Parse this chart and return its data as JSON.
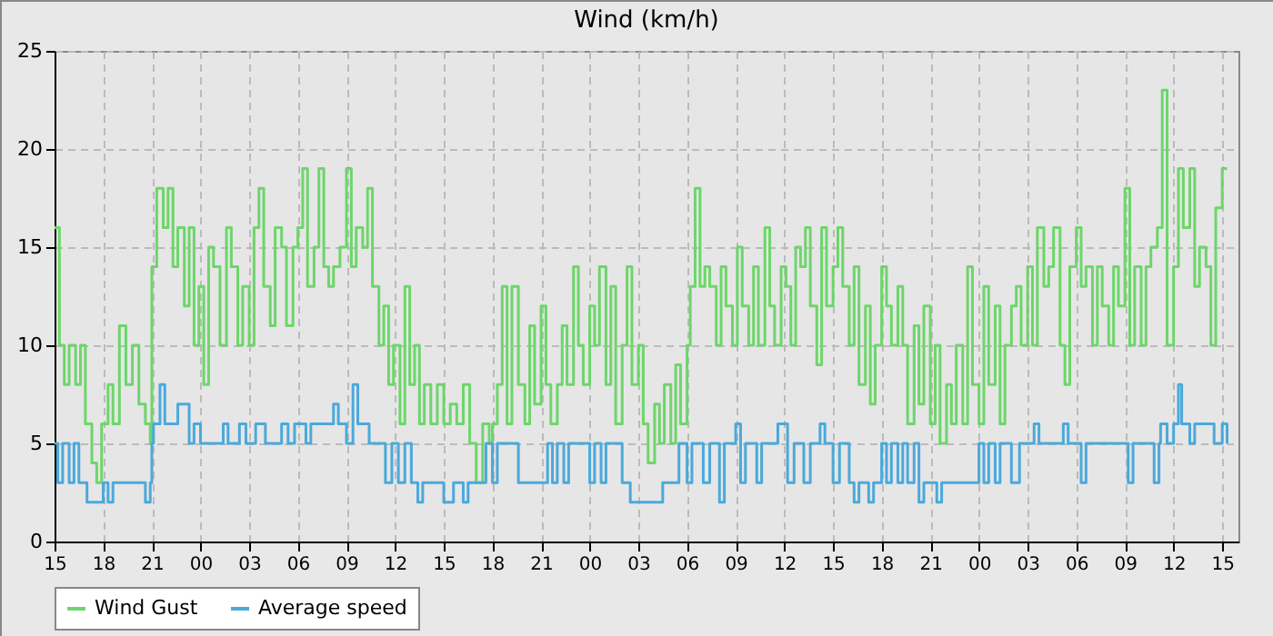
{
  "chart_data": {
    "type": "step",
    "title": "Wind (km/h)",
    "xlim": [
      15,
      88
    ],
    "ylim": [
      0,
      25
    ],
    "xticks": [
      {
        "value": 15,
        "label": "15"
      },
      {
        "value": 18,
        "label": "18"
      },
      {
        "value": 21,
        "label": "21"
      },
      {
        "value": 24,
        "label": "00"
      },
      {
        "value": 27,
        "label": "03"
      },
      {
        "value": 30,
        "label": "06"
      },
      {
        "value": 33,
        "label": "09"
      },
      {
        "value": 36,
        "label": "12"
      },
      {
        "value": 39,
        "label": "15"
      },
      {
        "value": 42,
        "label": "18"
      },
      {
        "value": 45,
        "label": "21"
      },
      {
        "value": 48,
        "label": "00"
      },
      {
        "value": 51,
        "label": "03"
      },
      {
        "value": 54,
        "label": "06"
      },
      {
        "value": 57,
        "label": "09"
      },
      {
        "value": 60,
        "label": "12"
      },
      {
        "value": 63,
        "label": "15"
      },
      {
        "value": 66,
        "label": "18"
      },
      {
        "value": 69,
        "label": "21"
      },
      {
        "value": 72,
        "label": "00"
      },
      {
        "value": 75,
        "label": "03"
      },
      {
        "value": 78,
        "label": "06"
      },
      {
        "value": 81,
        "label": "09"
      },
      {
        "value": 84,
        "label": "12"
      },
      {
        "value": 87,
        "label": "15"
      }
    ],
    "yticks": [
      0,
      5,
      10,
      15,
      20,
      25
    ],
    "grid": true,
    "legend": "bottom",
    "series": [
      {
        "name": "Wind Gust",
        "color": "#6dd66a",
        "x": [
          15,
          15.3,
          15.6,
          15.9,
          16.3,
          16.6,
          16.9,
          17.3,
          17.6,
          17.9,
          18.3,
          18.6,
          19,
          19.4,
          19.8,
          20.2,
          20.6,
          20.9,
          21,
          21.3,
          21.7,
          22,
          22.3,
          22.6,
          23,
          23.3,
          23.6,
          23.9,
          24.2,
          24.5,
          24.8,
          25.2,
          25.6,
          25.9,
          26.3,
          26.6,
          27,
          27.3,
          27.6,
          27.9,
          28.3,
          28.6,
          29,
          29.3,
          29.7,
          30,
          30.3,
          30.6,
          31,
          31.3,
          31.6,
          31.9,
          32.2,
          32.6,
          33,
          33.3,
          33.6,
          34,
          34.3,
          34.6,
          35,
          35.3,
          35.6,
          35.9,
          36.3,
          36.6,
          36.9,
          37.2,
          37.5,
          37.8,
          38.2,
          38.6,
          39,
          39.4,
          39.8,
          40.2,
          40.6,
          41,
          41.4,
          41.8,
          42,
          42.3,
          42.6,
          42.9,
          43.2,
          43.6,
          44,
          44.3,
          44.6,
          45,
          45.3,
          45.6,
          46,
          46.3,
          46.6,
          47,
          47.3,
          47.6,
          48,
          48.3,
          48.6,
          49,
          49.3,
          49.6,
          50,
          50.3,
          50.6,
          51,
          51.3,
          51.6,
          52,
          52.3,
          52.6,
          53,
          53.3,
          53.6,
          54,
          54.2,
          54.5,
          54.8,
          55.1,
          55.4,
          55.8,
          56.1,
          56.4,
          56.8,
          57.1,
          57.4,
          57.8,
          58.1,
          58.4,
          58.8,
          59.1,
          59.4,
          59.8,
          60.1,
          60.4,
          60.7,
          61,
          61.3,
          61.6,
          62,
          62.3,
          62.6,
          63,
          63.3,
          63.6,
          64,
          64.3,
          64.6,
          65,
          65.3,
          65.6,
          66,
          66.3,
          66.6,
          67,
          67.3,
          67.6,
          68,
          68.3,
          68.6,
          69,
          69.3,
          69.6,
          70,
          70.3,
          70.6,
          71,
          71.3,
          71.6,
          72,
          72.3,
          72.6,
          73,
          73.3,
          73.6,
          74,
          74.3,
          74.6,
          75,
          75.3,
          75.6,
          76,
          76.3,
          76.6,
          77,
          77.3,
          77.6,
          78,
          78.3,
          78.6,
          79,
          79.3,
          79.6,
          80,
          80.3,
          80.6,
          81,
          81.3,
          81.6,
          82,
          82.3,
          82.6,
          83,
          83.3,
          83.6,
          84,
          84.3,
          84.6,
          85,
          85.3,
          85.6,
          86,
          86.3,
          86.6,
          87,
          87.3
        ],
        "values": [
          16,
          10,
          8,
          10,
          8,
          10,
          6,
          4,
          3,
          6,
          8,
          6,
          11,
          8,
          10,
          7,
          6,
          5,
          14,
          18,
          16,
          18,
          14,
          16,
          12,
          16,
          10,
          13,
          8,
          15,
          14,
          10,
          16,
          14,
          10,
          13,
          10,
          16,
          18,
          13,
          11,
          16,
          15,
          11,
          15,
          16,
          19,
          13,
          15,
          19,
          14,
          13,
          14,
          15,
          19,
          14,
          16,
          15,
          18,
          13,
          10,
          12,
          8,
          10,
          6,
          13,
          8,
          10,
          6,
          8,
          6,
          8,
          6,
          7,
          6,
          8,
          5,
          3,
          6,
          5,
          6,
          8,
          13,
          6,
          13,
          8,
          6,
          11,
          7,
          12,
          8,
          6,
          8,
          11,
          8,
          14,
          10,
          8,
          12,
          10,
          14,
          8,
          13,
          6,
          10,
          14,
          8,
          10,
          6,
          4,
          7,
          5,
          8,
          5,
          9,
          6,
          10,
          13,
          18,
          13,
          14,
          13,
          10,
          14,
          12,
          10,
          15,
          12,
          10,
          14,
          10,
          16,
          12,
          10,
          14,
          13,
          10,
          15,
          14,
          16,
          12,
          9,
          16,
          12,
          14,
          16,
          13,
          10,
          14,
          8,
          12,
          7,
          10,
          14,
          12,
          10,
          13,
          10,
          6,
          11,
          7,
          12,
          6,
          10,
          5,
          8,
          6,
          10,
          6,
          14,
          8,
          6,
          13,
          8,
          12,
          6,
          10,
          12,
          13,
          10,
          14,
          10,
          16,
          13,
          14,
          16,
          10,
          8,
          14,
          16,
          13,
          14,
          10,
          14,
          12,
          10,
          14,
          12,
          18,
          10,
          14,
          10,
          14,
          15,
          16,
          23,
          10,
          14,
          19,
          16,
          19,
          13,
          15,
          14,
          10,
          17,
          19,
          19
        ]
      },
      {
        "name": "Average speed",
        "color": "#4ba9db",
        "x": [
          15,
          15.2,
          15.5,
          15.9,
          16.2,
          16.5,
          17,
          18,
          18.3,
          18.6,
          20.6,
          20.9,
          21,
          21.1,
          21.5,
          21.8,
          22.6,
          23.3,
          23.6,
          24,
          25.4,
          25.7,
          26.4,
          26.8,
          27.4,
          28,
          29,
          29.4,
          29.8,
          30.5,
          30.8,
          32.2,
          32.5,
          33,
          33.4,
          33.7,
          34.4,
          35.4,
          35.8,
          36.2,
          36.6,
          37,
          37.4,
          37.7,
          39,
          39.6,
          40.2,
          40.5,
          41.6,
          42,
          42.3,
          43.6,
          45.4,
          45.7,
          46,
          46.4,
          46.7,
          48,
          48.3,
          48.7,
          49,
          50,
          50.5,
          52.5,
          53.5,
          54,
          54.3,
          55,
          55.4,
          56,
          56.3,
          57,
          57.3,
          57.6,
          58.3,
          58.6,
          59.6,
          60.2,
          60.6,
          61.2,
          61.6,
          62.2,
          62.5,
          63,
          63.4,
          64,
          64.3,
          64.6,
          65.2,
          65.5,
          66,
          66.3,
          66.6,
          67,
          67.3,
          67.6,
          68,
          68.3,
          68.6,
          69.4,
          69.7,
          72,
          72.3,
          72.6,
          73,
          73.3,
          74,
          74.5,
          75.4,
          75.7,
          77.2,
          77.5,
          78.3,
          78.6,
          81.2,
          81.5,
          82.8,
          83.1,
          83.2,
          83.6,
          84,
          84.3,
          84.5,
          85,
          85.3,
          86.5,
          87,
          87.3
        ],
        "values": [
          5,
          3,
          5,
          3,
          5,
          3,
          2,
          3,
          2,
          3,
          2,
          3,
          5,
          6,
          8,
          6,
          7,
          5,
          6,
          5,
          6,
          5,
          6,
          5,
          6,
          5,
          6,
          5,
          6,
          5,
          6,
          7,
          6,
          5,
          8,
          6,
          5,
          3,
          5,
          3,
          5,
          3,
          2,
          3,
          2,
          3,
          2,
          3,
          5,
          3,
          5,
          3,
          5,
          3,
          5,
          3,
          5,
          3,
          5,
          3,
          5,
          3,
          2,
          3,
          5,
          3,
          5,
          3,
          5,
          2,
          5,
          6,
          3,
          5,
          3,
          5,
          6,
          3,
          5,
          3,
          5,
          6,
          5,
          3,
          5,
          3,
          2,
          3,
          2,
          3,
          5,
          3,
          5,
          3,
          5,
          3,
          5,
          2,
          3,
          2,
          3,
          5,
          3,
          5,
          3,
          5,
          3,
          5,
          6,
          5,
          6,
          5,
          3,
          5,
          3,
          5,
          3,
          5,
          6,
          5,
          6,
          8,
          6,
          5,
          6,
          5,
          6,
          5
        ]
      }
    ]
  }
}
